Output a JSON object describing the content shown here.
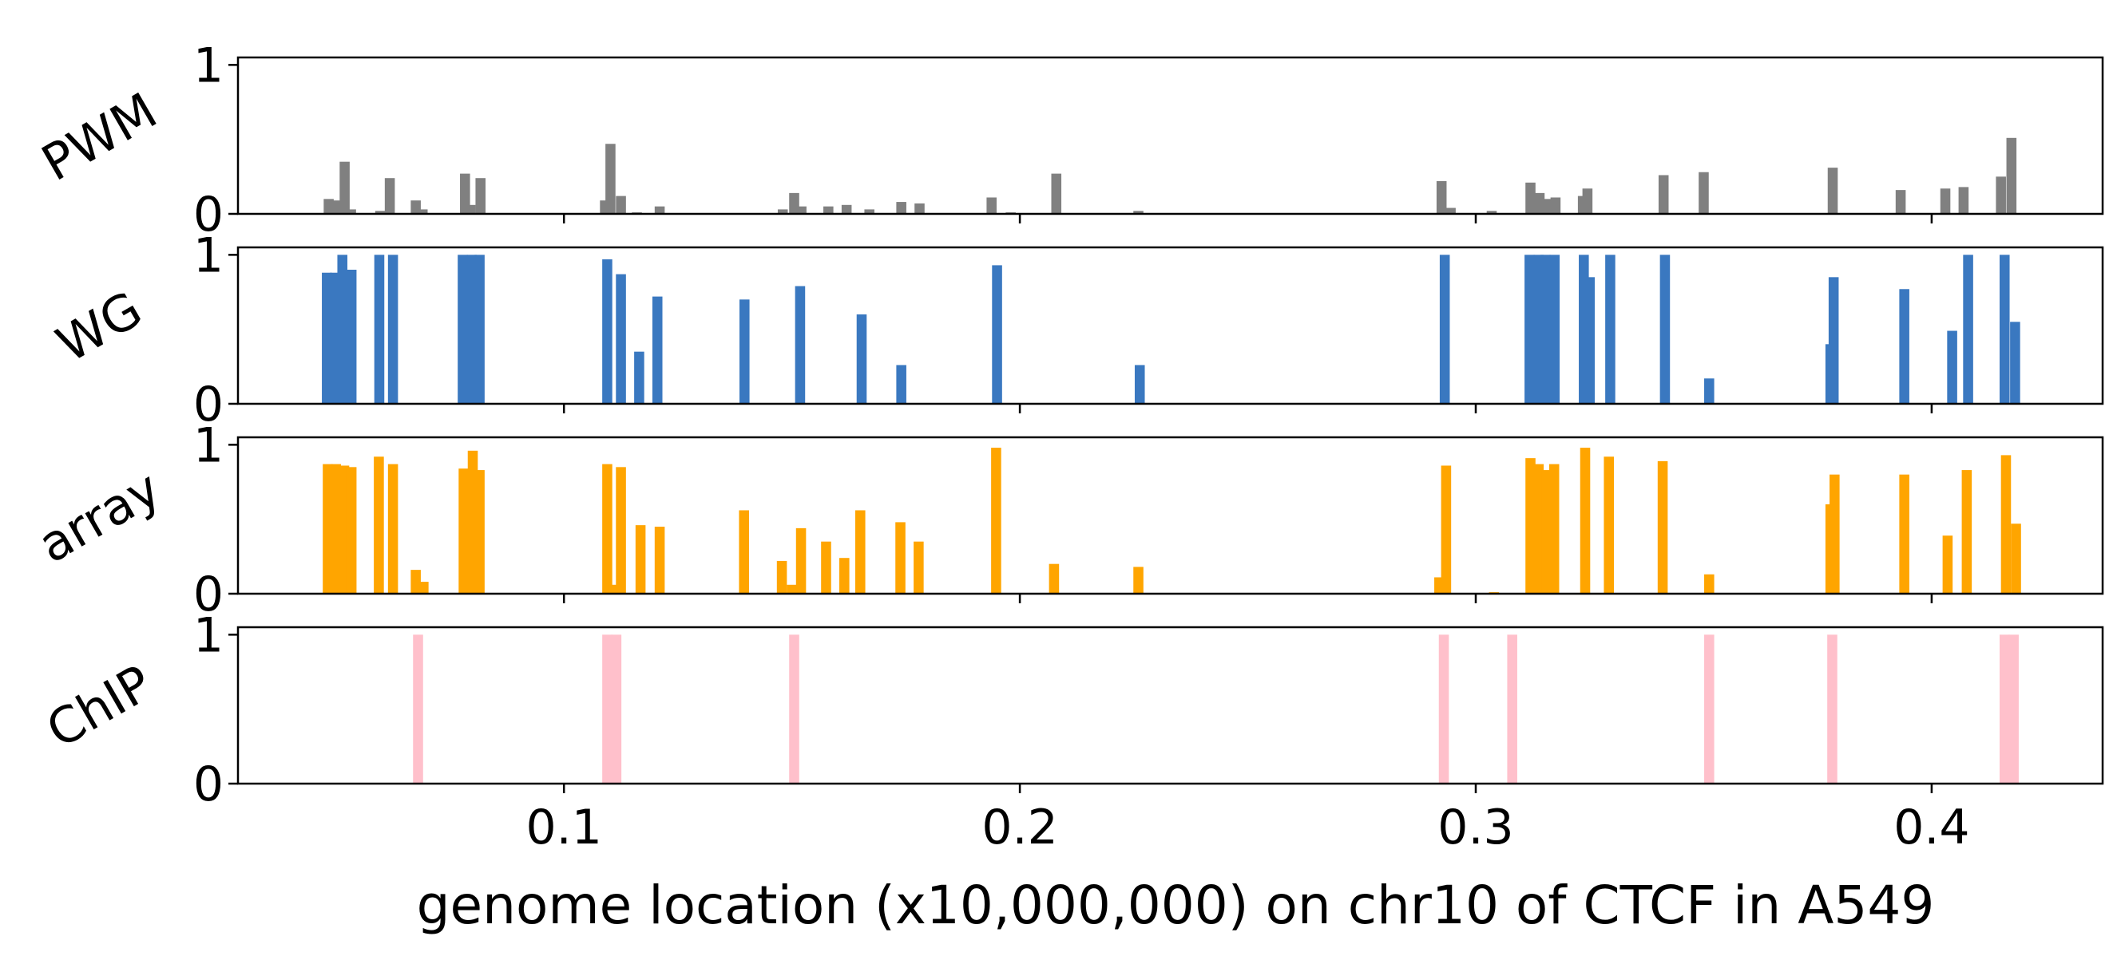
{
  "chart_data": {
    "type": "bar",
    "xlabel": "genome location (x10,000,000) on chr10 of CTCF in A549",
    "xlim": [
      0.0285,
      0.4375
    ],
    "xticks": [
      {
        "value": 0.1,
        "label": "0.1"
      },
      {
        "value": 0.2,
        "label": "0.2"
      },
      {
        "value": 0.3,
        "label": "0.3"
      },
      {
        "value": 0.4,
        "label": "0.4"
      }
    ],
    "ylim": [
      0,
      1.05
    ],
    "yticks": [
      {
        "value": 0,
        "label": "0"
      },
      {
        "value": 1,
        "label": "1"
      }
    ],
    "bar_width": 0.0022,
    "series": [
      {
        "name": "PWM",
        "color": "#808080",
        "points": [
          [
            0.0484,
            0.1
          ],
          [
            0.0502,
            0.09
          ],
          [
            0.0519,
            0.35
          ],
          [
            0.0533,
            0.03
          ],
          [
            0.0597,
            0.02
          ],
          [
            0.0618,
            0.24
          ],
          [
            0.0675,
            0.09
          ],
          [
            0.069,
            0.03
          ],
          [
            0.0783,
            0.27
          ],
          [
            0.0795,
            0.06
          ],
          [
            0.0817,
            0.24
          ],
          [
            0.109,
            0.09
          ],
          [
            0.1102,
            0.47
          ],
          [
            0.1125,
            0.12
          ],
          [
            0.116,
            0.01
          ],
          [
            0.121,
            0.05
          ],
          [
            0.148,
            0.03
          ],
          [
            0.1505,
            0.14
          ],
          [
            0.1521,
            0.05
          ],
          [
            0.158,
            0.05
          ],
          [
            0.162,
            0.06
          ],
          [
            0.167,
            0.03
          ],
          [
            0.174,
            0.08
          ],
          [
            0.178,
            0.07
          ],
          [
            0.1938,
            0.11
          ],
          [
            0.198,
            0.01
          ],
          [
            0.208,
            0.27
          ],
          [
            0.226,
            0.02
          ],
          [
            0.2925,
            0.22
          ],
          [
            0.2945,
            0.04
          ],
          [
            0.3035,
            0.02
          ],
          [
            0.312,
            0.21
          ],
          [
            0.314,
            0.14
          ],
          [
            0.316,
            0.1
          ],
          [
            0.3175,
            0.11
          ],
          [
            0.3235,
            0.12
          ],
          [
            0.3245,
            0.17
          ],
          [
            0.3412,
            0.26
          ],
          [
            0.35,
            0.28
          ],
          [
            0.3783,
            0.31
          ],
          [
            0.3932,
            0.16
          ],
          [
            0.403,
            0.17
          ],
          [
            0.407,
            0.18
          ],
          [
            0.4152,
            0.25
          ],
          [
            0.4175,
            0.51
          ]
        ]
      },
      {
        "name": "WG",
        "color": "#3a78c0",
        "points": [
          [
            0.048,
            0.88
          ],
          [
            0.0498,
            0.88
          ],
          [
            0.0514,
            1.0
          ],
          [
            0.0534,
            0.9
          ],
          [
            0.0595,
            1.0
          ],
          [
            0.0625,
            1.0
          ],
          [
            0.0778,
            1.0
          ],
          [
            0.0798,
            1.0
          ],
          [
            0.0815,
            1.0
          ],
          [
            0.1095,
            0.97
          ],
          [
            0.1125,
            0.87
          ],
          [
            0.1165,
            0.35
          ],
          [
            0.1205,
            0.72
          ],
          [
            0.1396,
            0.7
          ],
          [
            0.1518,
            0.79
          ],
          [
            0.1653,
            0.6
          ],
          [
            0.174,
            0.26
          ],
          [
            0.195,
            0.93
          ],
          [
            0.2263,
            0.26
          ],
          [
            0.2932,
            1.0
          ],
          [
            0.3118,
            1.0
          ],
          [
            0.3138,
            1.0
          ],
          [
            0.3153,
            1.0
          ],
          [
            0.3173,
            1.0
          ],
          [
            0.3237,
            1.0
          ],
          [
            0.325,
            0.85
          ],
          [
            0.3295,
            1.0
          ],
          [
            0.3415,
            1.0
          ],
          [
            0.3512,
            0.17
          ],
          [
            0.3778,
            0.4
          ],
          [
            0.3785,
            0.85
          ],
          [
            0.394,
            0.77
          ],
          [
            0.4045,
            0.49
          ],
          [
            0.408,
            1.0
          ],
          [
            0.416,
            1.0
          ],
          [
            0.4183,
            0.55
          ]
        ]
      },
      {
        "name": "array",
        "color": "#ffa500",
        "points": [
          [
            0.0482,
            0.87
          ],
          [
            0.05,
            0.87
          ],
          [
            0.0518,
            0.86
          ],
          [
            0.0534,
            0.85
          ],
          [
            0.0594,
            0.92
          ],
          [
            0.0625,
            0.87
          ],
          [
            0.0675,
            0.16
          ],
          [
            0.0692,
            0.08
          ],
          [
            0.078,
            0.84
          ],
          [
            0.08,
            0.96
          ],
          [
            0.0815,
            0.83
          ],
          [
            0.1095,
            0.87
          ],
          [
            0.111,
            0.06
          ],
          [
            0.1125,
            0.85
          ],
          [
            0.1168,
            0.46
          ],
          [
            0.121,
            0.45
          ],
          [
            0.1395,
            0.56
          ],
          [
            0.1478,
            0.22
          ],
          [
            0.15,
            0.06
          ],
          [
            0.152,
            0.44
          ],
          [
            0.1575,
            0.35
          ],
          [
            0.1615,
            0.24
          ],
          [
            0.165,
            0.56
          ],
          [
            0.1738,
            0.48
          ],
          [
            0.1778,
            0.35
          ],
          [
            0.1948,
            0.98
          ],
          [
            0.2075,
            0.2
          ],
          [
            0.226,
            0.18
          ],
          [
            0.292,
            0.11
          ],
          [
            0.2935,
            0.86
          ],
          [
            0.304,
            0.01
          ],
          [
            0.312,
            0.91
          ],
          [
            0.3138,
            0.87
          ],
          [
            0.3155,
            0.83
          ],
          [
            0.3172,
            0.87
          ],
          [
            0.324,
            0.98
          ],
          [
            0.3292,
            0.92
          ],
          [
            0.341,
            0.89
          ],
          [
            0.3512,
            0.13
          ],
          [
            0.3778,
            0.6
          ],
          [
            0.3787,
            0.8
          ],
          [
            0.394,
            0.8
          ],
          [
            0.4035,
            0.39
          ],
          [
            0.4077,
            0.83
          ],
          [
            0.4163,
            0.93
          ],
          [
            0.4185,
            0.47
          ]
        ]
      },
      {
        "name": "ChIP",
        "color": "#ffc0cb",
        "points": [
          [
            0.068,
            1.0
          ],
          [
            0.1095,
            1.0
          ],
          [
            0.1115,
            1.0
          ],
          [
            0.1505,
            1.0
          ],
          [
            0.293,
            1.0
          ],
          [
            0.308,
            1.0
          ],
          [
            0.3512,
            1.0
          ],
          [
            0.3782,
            1.0
          ],
          [
            0.416,
            1.0
          ],
          [
            0.418,
            1.0
          ]
        ]
      }
    ]
  }
}
